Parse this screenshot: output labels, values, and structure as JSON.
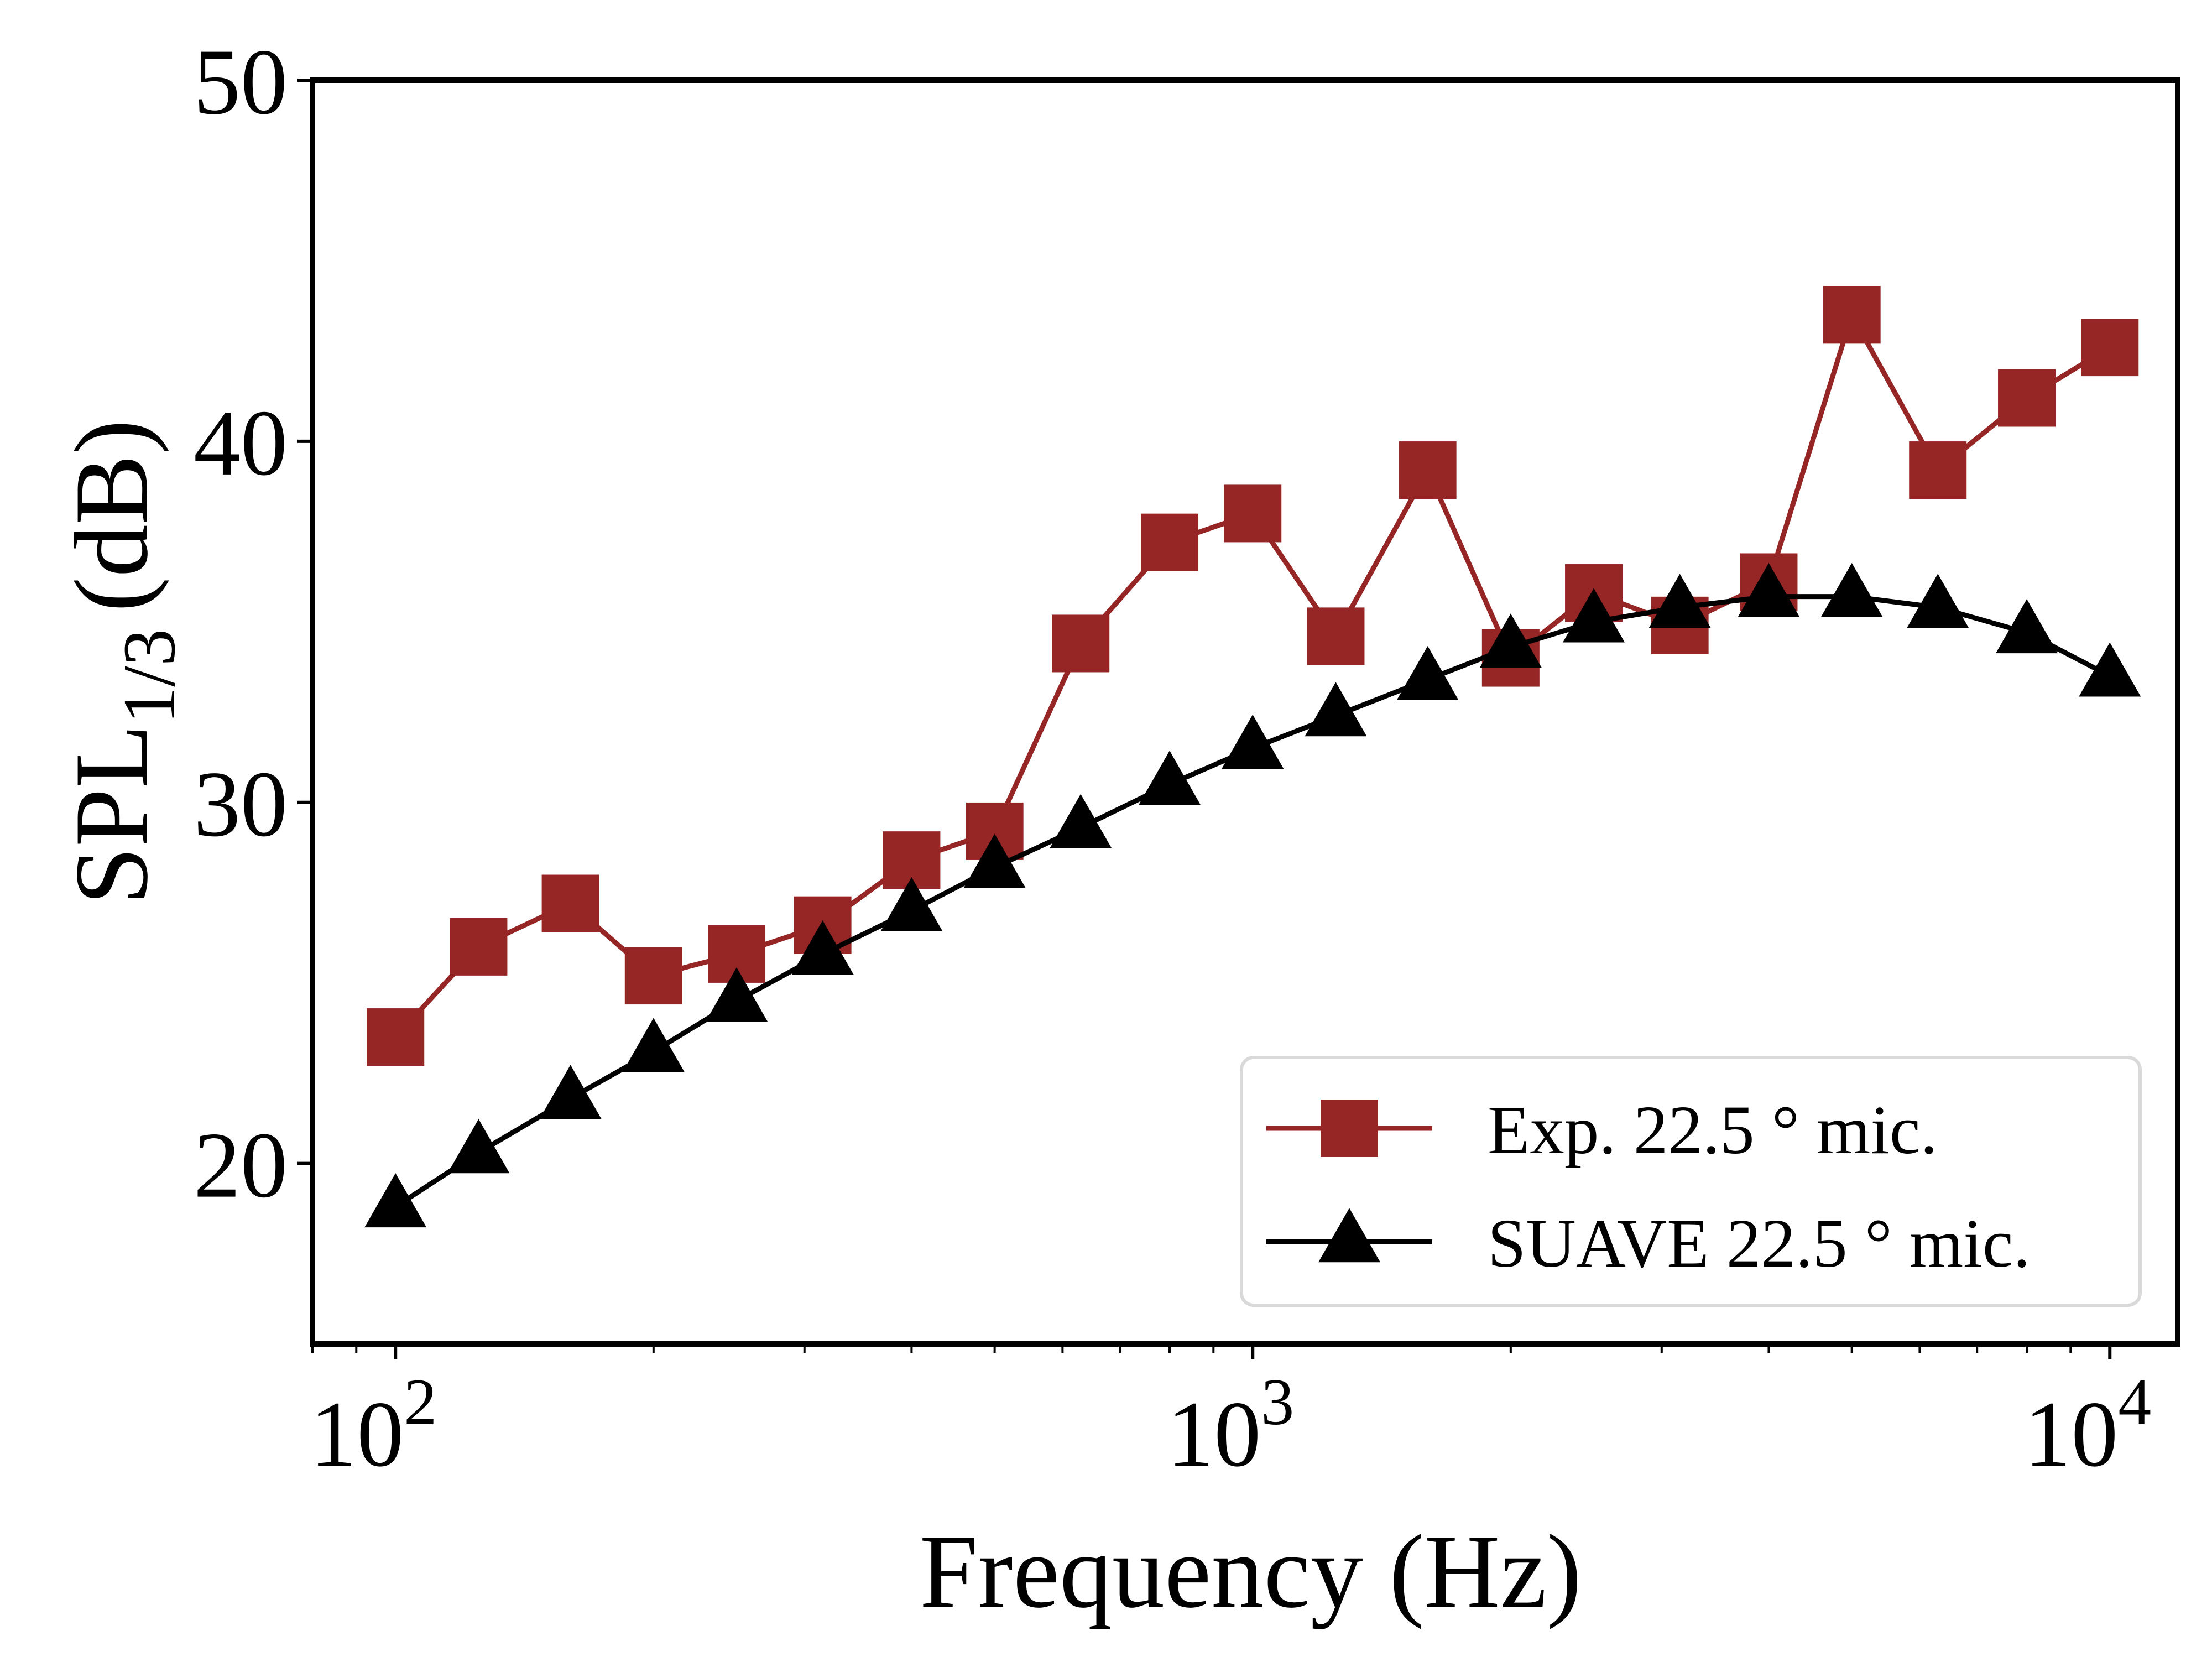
{
  "chart_data": {
    "type": "line",
    "xscale": "log",
    "xlabel": "Frequency (Hz)",
    "ylabel_main": "SPL",
    "ylabel_sub": "1/3",
    "ylabel_unit": "(dB)",
    "xlim": [
      80,
      12000
    ],
    "ylim": [
      15,
      50
    ],
    "x_major_ticks": [
      {
        "value": 100,
        "base": "10",
        "exp": "2"
      },
      {
        "value": 1000,
        "base": "10",
        "exp": "3"
      },
      {
        "value": 10000,
        "base": "10",
        "exp": "4"
      }
    ],
    "y_ticks": [
      {
        "value": 20,
        "label": "20"
      },
      {
        "value": 30,
        "label": "30"
      },
      {
        "value": 40,
        "label": "40"
      },
      {
        "value": 50,
        "label": "50"
      }
    ],
    "grid": false,
    "legend_position": "lower-right",
    "series": [
      {
        "name": "Exp. 22.5 ° mic.",
        "marker": "square",
        "color": "#962525",
        "x": [
          100,
          125,
          160,
          200,
          250,
          315,
          400,
          500,
          630,
          800,
          1000,
          1250,
          1600,
          2000,
          2500,
          3150,
          4000,
          5000,
          6300,
          8000,
          10000
        ],
        "y": [
          23.5,
          26.0,
          27.2,
          25.2,
          25.8,
          26.6,
          28.4,
          29.2,
          34.4,
          37.2,
          38.0,
          34.6,
          39.2,
          34.0,
          35.8,
          34.9,
          36.1,
          43.5,
          39.2,
          41.2,
          42.6
        ]
      },
      {
        "name": "SUAVE 22.5 ° mic.",
        "marker": "triangle",
        "color": "#000000",
        "x": [
          100,
          125,
          160,
          200,
          250,
          315,
          400,
          500,
          630,
          800,
          1000,
          1250,
          1600,
          2000,
          2500,
          3150,
          4000,
          5000,
          6300,
          8000,
          10000
        ],
        "y": [
          18.8,
          20.3,
          21.8,
          23.1,
          24.5,
          25.8,
          27.0,
          28.2,
          29.3,
          30.5,
          31.5,
          32.4,
          33.4,
          34.3,
          35.0,
          35.4,
          35.7,
          35.7,
          35.4,
          34.7,
          33.5
        ]
      }
    ]
  }
}
